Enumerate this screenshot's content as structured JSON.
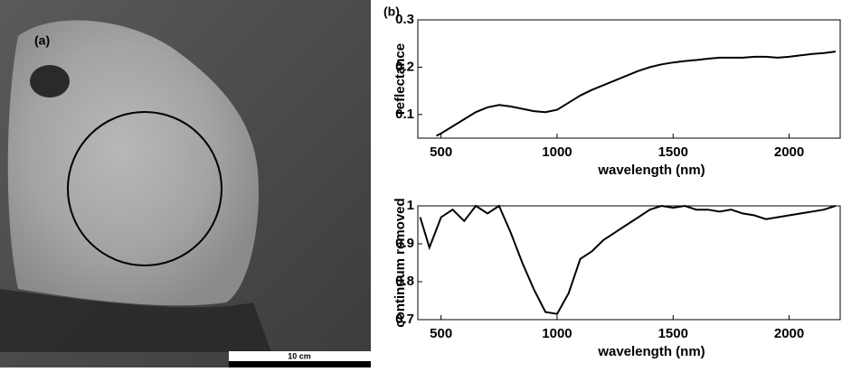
{
  "panels": {
    "a_label": "(a)",
    "scale_bar": "10 cm",
    "b_label": "(b)"
  },
  "chart_data": [
    {
      "type": "line",
      "xlabel": "wavelength (nm)",
      "ylabel": "reflectance",
      "color": "#000000",
      "x": [
        480,
        500,
        550,
        600,
        650,
        700,
        750,
        800,
        850,
        900,
        950,
        1000,
        1050,
        1100,
        1150,
        1200,
        1250,
        1300,
        1350,
        1400,
        1450,
        1500,
        1550,
        1600,
        1650,
        1700,
        1750,
        1800,
        1850,
        1900,
        1950,
        2000,
        2050,
        2100,
        2150,
        2200
      ],
      "values": [
        0.055,
        0.06,
        0.075,
        0.09,
        0.105,
        0.115,
        0.12,
        0.117,
        0.112,
        0.107,
        0.105,
        0.11,
        0.125,
        0.14,
        0.152,
        0.162,
        0.172,
        0.182,
        0.192,
        0.2,
        0.206,
        0.21,
        0.213,
        0.215,
        0.218,
        0.22,
        0.22,
        0.22,
        0.222,
        0.222,
        0.22,
        0.222,
        0.225,
        0.228,
        0.23,
        0.233
      ],
      "xlim": [
        400,
        2220
      ],
      "ylim": [
        0.05,
        0.3
      ],
      "xticks": [
        500,
        1000,
        1500,
        2000
      ],
      "yticks": [
        0.1,
        0.2,
        0.3
      ]
    },
    {
      "type": "line",
      "xlabel": "wavelength (nm)",
      "ylabel": "continuum removed",
      "color": "#000000",
      "x": [
        410,
        450,
        500,
        550,
        600,
        650,
        700,
        750,
        800,
        850,
        900,
        950,
        1000,
        1050,
        1100,
        1150,
        1200,
        1250,
        1300,
        1350,
        1400,
        1450,
        1500,
        1550,
        1600,
        1650,
        1700,
        1750,
        1800,
        1850,
        1900,
        1950,
        2000,
        2050,
        2100,
        2150,
        2200
      ],
      "values": [
        0.97,
        0.89,
        0.97,
        0.99,
        0.96,
        1.0,
        0.98,
        1.0,
        0.93,
        0.85,
        0.78,
        0.72,
        0.715,
        0.77,
        0.86,
        0.88,
        0.91,
        0.93,
        0.95,
        0.97,
        0.99,
        1.0,
        0.995,
        1.0,
        0.99,
        0.99,
        0.985,
        0.99,
        0.98,
        0.975,
        0.965,
        0.97,
        0.975,
        0.98,
        0.985,
        0.99,
        1.0
      ],
      "xlim": [
        400,
        2220
      ],
      "ylim": [
        0.7,
        1
      ],
      "xticks": [
        500,
        1000,
        1500,
        2000
      ],
      "yticks": [
        0.7,
        0.8,
        0.9,
        1
      ]
    }
  ]
}
